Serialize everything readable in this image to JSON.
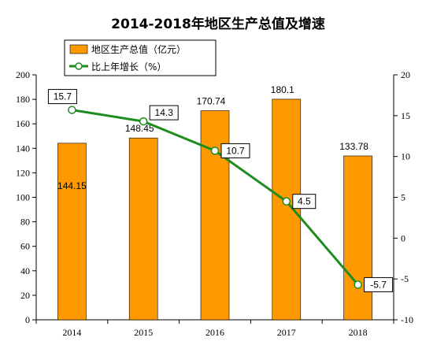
{
  "chart_data": {
    "type": "bar",
    "title": "2014-2018年地区生产总值及增速",
    "categories": [
      "2014",
      "2015",
      "2016",
      "2017",
      "2018"
    ],
    "series": [
      {
        "name": "地区生产总值（亿元）",
        "kind": "bar",
        "axis": "left",
        "color": "#FF9900",
        "values": [
          144.15,
          148.45,
          170.74,
          180.1,
          133.78
        ],
        "labels": [
          "144.15",
          "148.45",
          "170.74",
          "180.1",
          "133.78"
        ]
      },
      {
        "name": "比上年增长（%）",
        "kind": "line",
        "axis": "right",
        "color": "#1E8C1E",
        "values": [
          15.7,
          14.3,
          10.7,
          4.5,
          -5.7
        ],
        "labels": [
          "15.7",
          "14.3",
          "10.7",
          "4.5",
          "-5.7"
        ]
      }
    ],
    "y_left": {
      "min": 0,
      "max": 200,
      "step": 20,
      "tick_labels": [
        "0",
        "20",
        "40",
        "60",
        "80",
        "100",
        "120",
        "140",
        "160",
        "180",
        "200"
      ]
    },
    "y_right": {
      "min": -10,
      "max": 20,
      "step": 5,
      "tick_labels": [
        "-10",
        "-5",
        "0",
        "5",
        "10",
        "15",
        "20"
      ]
    },
    "legend_position": "top-left",
    "grid": false
  }
}
